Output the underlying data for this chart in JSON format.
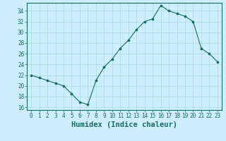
{
  "x": [
    0,
    1,
    2,
    3,
    4,
    5,
    6,
    7,
    8,
    9,
    10,
    11,
    12,
    13,
    14,
    15,
    16,
    17,
    18,
    19,
    20,
    21,
    22,
    23
  ],
  "y": [
    22,
    21.5,
    21,
    20.5,
    20,
    18.5,
    17,
    16.5,
    21,
    23.5,
    25,
    27,
    28.5,
    30.5,
    32,
    32.5,
    35,
    34,
    33.5,
    33,
    32,
    27,
    26,
    24.5
  ],
  "xlabel": "Humidex (Indice chaleur)",
  "ylabel": "",
  "xlim": [
    -0.5,
    23.5
  ],
  "ylim": [
    15.5,
    35.5
  ],
  "yticks": [
    16,
    18,
    20,
    22,
    24,
    26,
    28,
    30,
    32,
    34
  ],
  "xticks": [
    0,
    1,
    2,
    3,
    4,
    5,
    6,
    7,
    8,
    9,
    10,
    11,
    12,
    13,
    14,
    15,
    16,
    17,
    18,
    19,
    20,
    21,
    22,
    23
  ],
  "line_color": "#1a6b5a",
  "marker": "o",
  "marker_size": 2.2,
  "bg_color": "#cceeff",
  "grid_color": "#aadddd",
  "tick_label_fontsize": 5.5,
  "xlabel_fontsize": 7.5
}
